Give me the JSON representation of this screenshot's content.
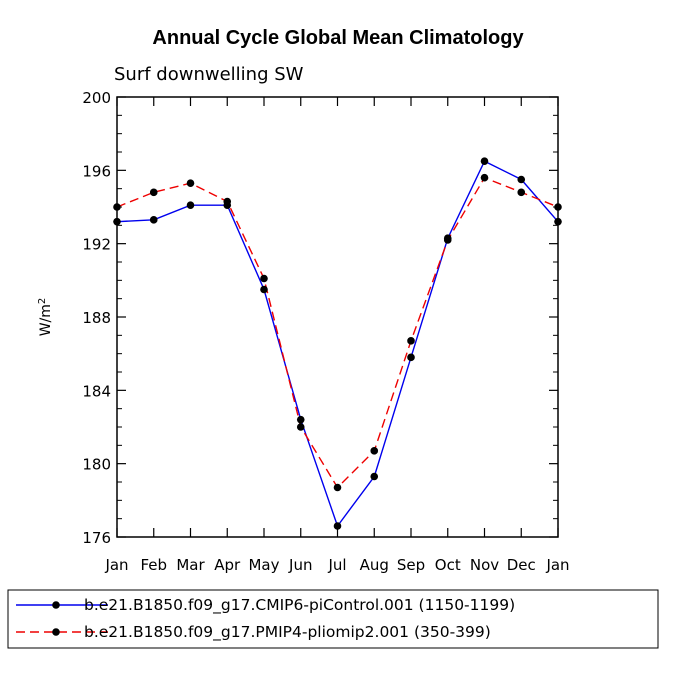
{
  "chart_data": {
    "type": "line",
    "title": "Annual Cycle Global Mean Climatology",
    "subtitle": "Surf downwelling SW",
    "ylabel": "W/m",
    "ylabel_superscript": "2",
    "ylim": [
      176,
      200
    ],
    "yticks": [
      176,
      180,
      184,
      188,
      192,
      196,
      200
    ],
    "categories": [
      "Jan",
      "Feb",
      "Mar",
      "Apr",
      "May",
      "Jun",
      "Jul",
      "Aug",
      "Sep",
      "Oct",
      "Nov",
      "Dec",
      "Jan"
    ],
    "series": [
      {
        "name": "b.e21.B1850.f09_g17.CMIP6-piControl.001 (1150-1199)",
        "color": "#0000ee",
        "dash": "solid",
        "values": [
          193.2,
          193.3,
          194.1,
          194.1,
          189.5,
          182.4,
          176.6,
          179.3,
          185.8,
          192.3,
          196.5,
          195.5,
          193.2
        ]
      },
      {
        "name": "b.e21.B1850.f09_g17.PMIP4-pliomip2.001 (350-399)",
        "color": "#ee0000",
        "dash": "dashed",
        "values": [
          194.0,
          194.8,
          195.3,
          194.3,
          190.1,
          182.0,
          178.7,
          180.7,
          186.7,
          192.2,
          195.6,
          194.8,
          194.0
        ]
      }
    ]
  }
}
